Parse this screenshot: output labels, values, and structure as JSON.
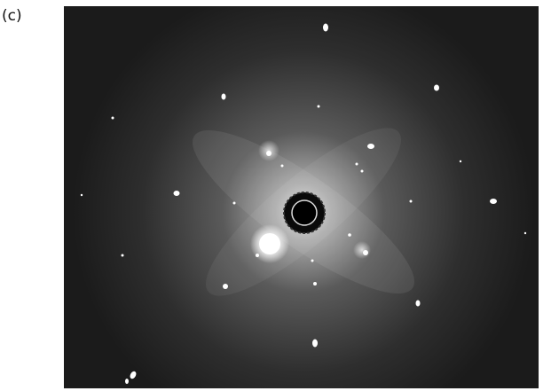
{
  "figure": {
    "panel_label": "(c)"
  },
  "image": {
    "kind": "electron diffraction pattern",
    "colors": {
      "background_dark": "#1a1a1a",
      "halo_light": "#cfcfcf",
      "spot": "#ffffff",
      "beam_stop": "#000000"
    }
  }
}
